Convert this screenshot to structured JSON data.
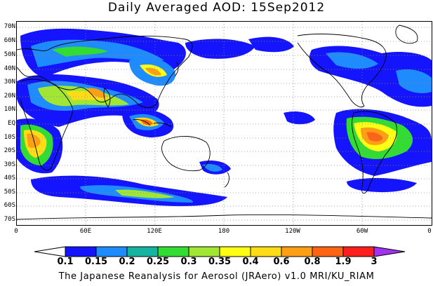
{
  "title": "Daily Averaged AOD: 15Sep2012",
  "credit": "The Japanese Reanalysis for Aerosol (JRAero) v1.0 MRI/KU_RIAM",
  "lat_labels": [
    "70N",
    "60N",
    "50N",
    "40N",
    "30N",
    "20N",
    "10N",
    "EQ",
    "10S",
    "20S",
    "30S",
    "40S",
    "50S",
    "60S",
    "70S"
  ],
  "lon_labels": [
    "0",
    "60E",
    "120E",
    "180",
    "120W",
    "60W",
    "0"
  ],
  "colorbar": {
    "levels": [
      "0.1",
      "0.15",
      "0.2",
      "0.25",
      "0.3",
      "0.35",
      "0.4",
      "0.6",
      "0.8",
      "1.9",
      "3"
    ],
    "colors": [
      "#ffffff",
      "#1414ff",
      "#1e8cff",
      "#14b4a0",
      "#32dc32",
      "#a0e632",
      "#ffff14",
      "#ffdc14",
      "#ffa014",
      "#ff6414",
      "#ff1e1e",
      "#a032f0"
    ]
  }
}
